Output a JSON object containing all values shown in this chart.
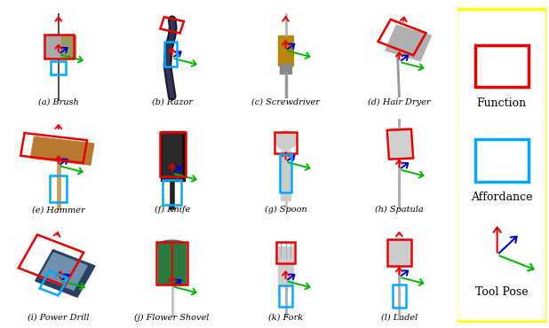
{
  "bg_color": "#f0f0f0",
  "white": "#ffffff",
  "RED": "#ee0000",
  "BLUE": "#00aaff",
  "GREEN": "#00bb00",
  "DKBLUE": "#0000cc",
  "YELLOW": "#ffff00",
  "tools": [
    {
      "label": "(a) Brush",
      "row": 0,
      "col": 0
    },
    {
      "label": "(b) Razor",
      "row": 0,
      "col": 1
    },
    {
      "label": "(c) Screwdriver",
      "row": 0,
      "col": 2
    },
    {
      "label": "(d) Hair Dryer",
      "row": 0,
      "col": 3
    },
    {
      "label": "(e) Hammer",
      "row": 1,
      "col": 0
    },
    {
      "label": "(f) Knife",
      "row": 1,
      "col": 1
    },
    {
      "label": "(g) Spoon",
      "row": 1,
      "col": 2
    },
    {
      "label": "(h) Spatula",
      "row": 1,
      "col": 3
    },
    {
      "label": "(i) Power Drill",
      "row": 2,
      "col": 0
    },
    {
      "label": "(j) Flower Shovel",
      "row": 2,
      "col": 1
    },
    {
      "label": "(k) Fork",
      "row": 2,
      "col": 2
    },
    {
      "label": "(l) Ladel",
      "row": 2,
      "col": 3
    }
  ],
  "fig_width": 6.18,
  "fig_height": 3.7,
  "dpi": 100
}
